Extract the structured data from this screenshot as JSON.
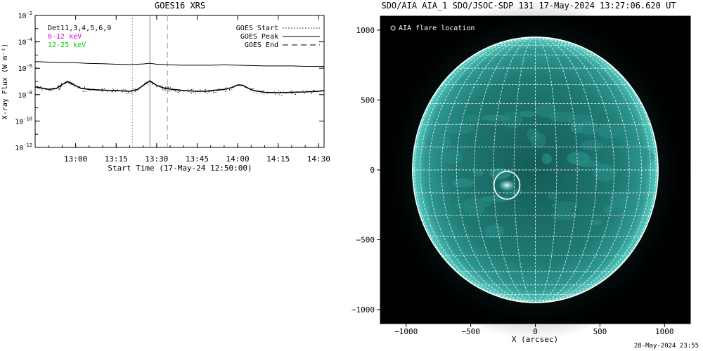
{
  "footer_timestamp": "28-May-2024 23:55",
  "chart_data": [
    {
      "type": "line",
      "title": "GOES16 XRS",
      "xlabel": "Start Time (17-May-24 12:50:00)",
      "ylabel": "X-ray Flux (W m⁻²)",
      "yscale": "log",
      "xlim_minutes_from_start": [
        -5,
        102
      ],
      "ylim": [
        1e-12,
        0.01
      ],
      "x_ticks": [
        "13:00",
        "13:15",
        "13:30",
        "13:45",
        "14:00",
        "14:15",
        "14:30"
      ],
      "y_ticks": [
        {
          "base": "10",
          "exp": "-2"
        },
        {
          "base": "10",
          "exp": "-4"
        },
        {
          "base": "10",
          "exp": "-6"
        },
        {
          "base": "10",
          "exp": "-8"
        },
        {
          "base": "10",
          "exp": "-10"
        },
        {
          "base": "10",
          "exp": "-12"
        }
      ],
      "detector_label": "Det11,3,4,5,6,9",
      "energy_bands": [
        {
          "label": "6-12 keV",
          "color": "#dd00dd"
        },
        {
          "label": "12-25 keV",
          "color": "#00cc00"
        }
      ],
      "legend": {
        "placement": "top-right",
        "entries": [
          {
            "label": "GOES Start",
            "style": "dotted"
          },
          {
            "label": "GOES Peak",
            "style": "solid"
          },
          {
            "label": "GOES End",
            "style": "dashed"
          }
        ]
      },
      "event_markers_minutes_from_start": {
        "start": 31,
        "peak": 37.5,
        "end": 44
      },
      "series": [
        {
          "x": [
            -5,
            0,
            5,
            10,
            15,
            20,
            25,
            30,
            35,
            37.5,
            40,
            45,
            50,
            55,
            60,
            65,
            70,
            75,
            80,
            85,
            90,
            95,
            100,
            102
          ],
          "y": [
            3.2e-06,
            2.9e-06,
            2.7e-06,
            2.6e-06,
            2.3e-06,
            2.2e-06,
            2e-06,
            1.9e-06,
            2.1e-06,
            2.4e-06,
            2e-06,
            1.8e-06,
            1.7e-06,
            1.7e-06,
            1.7e-06,
            1.8e-06,
            1.7e-06,
            1.6e-06,
            1.5e-06,
            1.5e-06,
            1.5e-06,
            1.4e-06,
            1.4e-06,
            1.4e-06
          ]
        },
        {
          "x": [
            -5,
            -2,
            0,
            3,
            5,
            7,
            9,
            12,
            15,
            20,
            25,
            30,
            33,
            35,
            37.5,
            40,
            43,
            46,
            50,
            55,
            58,
            60,
            65,
            68,
            70,
            72,
            74,
            76,
            80,
            85,
            90,
            95,
            100,
            102
          ],
          "y": [
            4e-08,
            3e-08,
            2.5e-08,
            3e-08,
            6e-08,
            1e-07,
            6e-08,
            3e-08,
            2.5e-08,
            2.2e-08,
            2e-08,
            1.8e-08,
            2.5e-08,
            5e-08,
            1.1e-07,
            5e-08,
            3e-08,
            2.5e-08,
            2e-08,
            1.8e-08,
            1.8e-08,
            2e-08,
            2.5e-08,
            3.5e-08,
            5.5e-08,
            5e-08,
            3e-08,
            2e-08,
            1.5e-08,
            1.4e-08,
            1.5e-08,
            1.6e-08,
            1.8e-08,
            2e-08
          ]
        }
      ]
    },
    {
      "type": "image",
      "title": "SDO/AIA AIA_1 SDO/JSOC-SDP 131 17-May-2024 13:27:06.620 UT",
      "xlabel": "X (arcsec)",
      "ylabel": "",
      "xlim": [
        -1200,
        1200
      ],
      "ylim": [
        -1100,
        1100
      ],
      "x_ticks": [
        -1000,
        -500,
        0,
        500,
        1000
      ],
      "y_ticks": [
        1000,
        500,
        0,
        -500,
        -1000
      ],
      "disk_radius_arcsec": 950,
      "grid_spacing_deg": 10,
      "disk_color": "#2a8f8a",
      "limb_color": "#7fe6dc",
      "legend": {
        "placement": "top-left",
        "label": "AIA flare location"
      },
      "flare": {
        "x": -220,
        "y": -110,
        "radius": 100
      }
    }
  ]
}
